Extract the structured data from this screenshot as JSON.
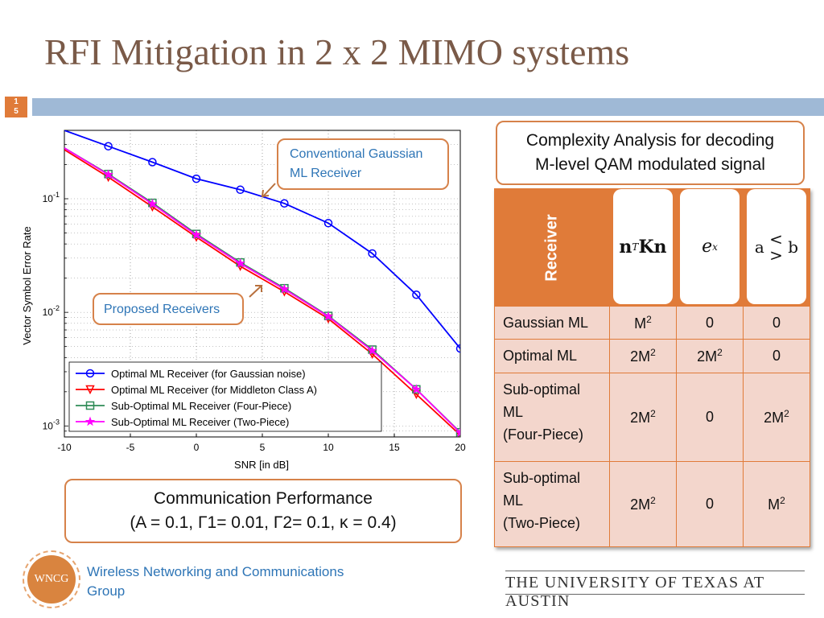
{
  "slide": {
    "title": "RFI Mitigation in 2 x 2 MIMO systems",
    "page_number_top": "1",
    "page_number_bottom": "5"
  },
  "callouts": {
    "conventional_line1": "Conventional Gaussian",
    "conventional_line2": "ML Receiver",
    "proposed": "Proposed Receivers"
  },
  "performance_box": {
    "line1": "Communication Performance",
    "line2": "(A = 0.1, Γ1= 0.01, Γ2= 0.1, κ = 0.4)"
  },
  "complexity_box": {
    "line1": "Complexity Analysis for decoding",
    "line2": "M-level QAM modulated signal"
  },
  "complexity_table": {
    "header_label": "Receiver",
    "columns": [
      "nTKn",
      "ex",
      "a < > b"
    ],
    "rows": [
      {
        "receiver": "Gaussian ML",
        "values": [
          "M2",
          "0",
          "0"
        ]
      },
      {
        "receiver": "Optimal ML",
        "values": [
          "2M2",
          "2M2",
          "0"
        ]
      },
      {
        "receiver": "Sub-optimal ML (Four-Piece)",
        "values": [
          "2M2",
          "0",
          "2M2"
        ]
      },
      {
        "receiver": "Sub-optimal ML (Two-Piece)",
        "values": [
          "2M2",
          "0",
          "M2"
        ]
      }
    ]
  },
  "footer": {
    "group_line1": "Wireless Networking and Communications",
    "group_line2": "Group",
    "logo_text": "WNCG",
    "university": "THE UNIVERSITY OF TEXAS AT AUSTIN"
  },
  "chart_data": {
    "type": "line",
    "xlabel": "SNR [in dB]",
    "ylabel": "Vector Symbol Error Rate",
    "xlim": [
      -10,
      20
    ],
    "ylim": [
      0.0008,
      0.4
    ],
    "yscale": "log",
    "x_ticks": [
      "-10",
      "-5",
      "0",
      "5",
      "10",
      "15",
      "20"
    ],
    "y_ticks": [
      {
        "base": "10",
        "exp": "-1",
        "value": 0.1
      },
      {
        "base": "10",
        "exp": "-2",
        "value": 0.01
      },
      {
        "base": "10",
        "exp": "-3",
        "value": 0.001
      }
    ],
    "grid": true,
    "legend_position": "bottom-left",
    "colors": {
      "gaussian": "#0000ff",
      "middleton": "#ff0000",
      "four_piece": "#2e8b57",
      "two_piece": "#ff00ff"
    },
    "series": [
      {
        "name": "Optimal ML Receiver (for Gaussian noise)",
        "marker": "circle",
        "color": "#0000ff",
        "x": [
          -10,
          -6.67,
          -3.33,
          0,
          3.33,
          6.67,
          10,
          13.33,
          16.67,
          20
        ],
        "y": [
          0.4,
          0.29,
          0.21,
          0.15,
          0.12,
          0.091,
          0.061,
          0.033,
          0.0143,
          0.0048
        ]
      },
      {
        "name": "Optimal ML Receiver (for Middleton Class A)",
        "marker": "triangle-down",
        "color": "#ff0000",
        "x": [
          -10,
          -6.67,
          -3.33,
          0,
          3.33,
          6.67,
          10,
          13.33,
          16.67,
          20
        ],
        "y": [
          0.27,
          0.155,
          0.085,
          0.046,
          0.0255,
          0.0152,
          0.0088,
          0.0043,
          0.0019,
          0.00083
        ]
      },
      {
        "name": "Sub-Optimal ML Receiver (Four-Piece)",
        "marker": "square",
        "color": "#2e8b57",
        "x": [
          -10,
          -6.67,
          -3.33,
          0,
          3.33,
          6.67,
          10,
          13.33,
          16.67,
          20
        ],
        "y": [
          0.28,
          0.165,
          0.092,
          0.049,
          0.0275,
          0.0163,
          0.0093,
          0.0047,
          0.0021,
          0.00088
        ]
      },
      {
        "name": "Sub-Optimal ML Receiver (Two-Piece)",
        "marker": "star",
        "color": "#ff00ff",
        "x": [
          -10,
          -6.67,
          -3.33,
          0,
          3.33,
          6.67,
          10,
          13.33,
          16.67,
          20
        ],
        "y": [
          0.28,
          0.163,
          0.09,
          0.048,
          0.027,
          0.016,
          0.0092,
          0.0046,
          0.0021,
          0.00087
        ]
      }
    ]
  }
}
